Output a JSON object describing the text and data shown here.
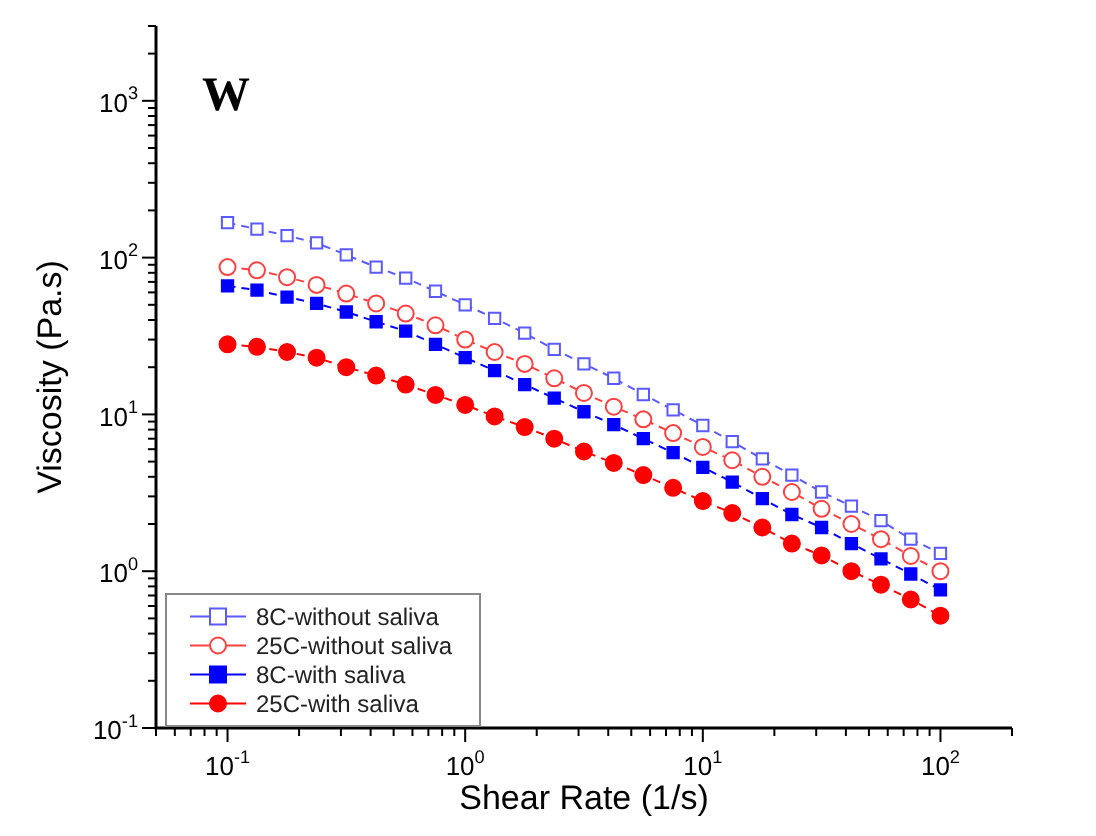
{
  "chart_data": {
    "type": "line",
    "xlabel": "Shear Rate (1/s)",
    "ylabel": "Viscosity (Pa.s)",
    "annotations": [
      "W"
    ],
    "log": "xy",
    "xlim": [
      0.05,
      200
    ],
    "ylim": [
      0.1,
      3000
    ],
    "line_style": "dashed",
    "legend": "bottom left",
    "grid": false,
    "xticks": [
      {
        "value": 0.05,
        "label": null
      },
      {
        "value": 0.06,
        "label": null
      },
      {
        "value": 0.07,
        "label": null
      },
      {
        "value": 0.08,
        "label": null
      },
      {
        "value": 0.09,
        "label": null
      },
      {
        "value": 0.1,
        "label": "10$^{-1}$"
      },
      {
        "value": 0.2,
        "label": null
      },
      {
        "value": 0.3,
        "label": null
      },
      {
        "value": 0.4,
        "label": null
      },
      {
        "value": 0.5,
        "label": null
      },
      {
        "value": 0.6,
        "label": null
      },
      {
        "value": 0.7,
        "label": null
      },
      {
        "value": 0.8,
        "label": null
      },
      {
        "value": 0.9,
        "label": null
      },
      {
        "value": 1,
        "label": "10$^{0}$"
      },
      {
        "value": 2,
        "label": null
      },
      {
        "value": 3,
        "label": null
      },
      {
        "value": 4,
        "label": null
      },
      {
        "value": 5,
        "label": null
      },
      {
        "value": 6,
        "label": null
      },
      {
        "value": 7,
        "label": null
      },
      {
        "value": 8,
        "label": null
      },
      {
        "value": 9,
        "label": null
      },
      {
        "value": 10,
        "label": "10$^{1}$"
      },
      {
        "value": 20,
        "label": null
      },
      {
        "value": 30,
        "label": null
      },
      {
        "value": 40,
        "label": null
      },
      {
        "value": 50,
        "label": null
      },
      {
        "value": 60,
        "label": null
      },
      {
        "value": 70,
        "label": null
      },
      {
        "value": 80,
        "label": null
      },
      {
        "value": 90,
        "label": null
      },
      {
        "value": 100,
        "label": "10$^{2}$"
      },
      {
        "value": 200,
        "label": null
      }
    ],
    "yticks": [
      {
        "value": 0.1,
        "label": "10$^{-1}$"
      },
      {
        "value": 0.2,
        "label": null
      },
      {
        "value": 0.3,
        "label": null
      },
      {
        "value": 0.4,
        "label": null
      },
      {
        "value": 0.5,
        "label": null
      },
      {
        "value": 0.6,
        "label": null
      },
      {
        "value": 0.7,
        "label": null
      },
      {
        "value": 0.8,
        "label": null
      },
      {
        "value": 0.9,
        "label": null
      },
      {
        "value": 1,
        "label": "10$^{0}$"
      },
      {
        "value": 2,
        "label": null
      },
      {
        "value": 3,
        "label": null
      },
      {
        "value": 4,
        "label": null
      },
      {
        "value": 5,
        "label": null
      },
      {
        "value": 6,
        "label": null
      },
      {
        "value": 7,
        "label": null
      },
      {
        "value": 8,
        "label": null
      },
      {
        "value": 9,
        "label": null
      },
      {
        "value": 10,
        "label": "10$^{1}$"
      },
      {
        "value": 20,
        "label": null
      },
      {
        "value": 30,
        "label": null
      },
      {
        "value": 40,
        "label": null
      },
      {
        "value": 50,
        "label": null
      },
      {
        "value": 60,
        "label": null
      },
      {
        "value": 70,
        "label": null
      },
      {
        "value": 80,
        "label": null
      },
      {
        "value": 90,
        "label": null
      },
      {
        "value": 100,
        "label": "10$^{2}$"
      },
      {
        "value": 200,
        "label": null
      },
      {
        "value": 300,
        "label": null
      },
      {
        "value": 400,
        "label": null
      },
      {
        "value": 500,
        "label": null
      },
      {
        "value": 600,
        "label": null
      },
      {
        "value": 700,
        "label": null
      },
      {
        "value": 800,
        "label": null
      },
      {
        "value": 900,
        "label": null
      },
      {
        "value": 1000,
        "label": "10$^{3}$"
      },
      {
        "value": 2000,
        "label": null
      },
      {
        "value": 3000,
        "label": null
      }
    ],
    "x": [
      0.1,
      0.133,
      0.178,
      0.237,
      0.316,
      0.422,
      0.562,
      0.75,
      1,
      1.33,
      1.78,
      2.37,
      3.16,
      4.22,
      5.62,
      7.5,
      10,
      13.3,
      17.8,
      23.7,
      31.6,
      42.2,
      56.2,
      75,
      100
    ],
    "series": [
      {
        "name": "8C-without saliva",
        "color": "#5a5aff",
        "marker": "square",
        "values": [
          167,
          152,
          138,
          124,
          104,
          87,
          74,
          61,
          50,
          41,
          33,
          26,
          21,
          17,
          13.4,
          10.7,
          8.5,
          6.7,
          5.2,
          4.1,
          3.2,
          2.6,
          2.1,
          1.6,
          1.3
        ]
      },
      {
        "name": "25C-without saliva",
        "color": "#ff4040",
        "marker": "circle",
        "values": [
          87,
          83,
          75,
          67,
          59,
          51,
          44,
          37,
          30,
          25,
          21,
          17,
          13.7,
          11.2,
          9.3,
          7.6,
          6.2,
          5.1,
          4,
          3.2,
          2.5,
          2,
          1.6,
          1.25,
          1
        ]
      },
      {
        "name": "8C-with saliva",
        "color": "#0000ff",
        "marker": "square",
        "values": [
          66,
          62,
          56,
          51,
          45,
          39,
          34,
          28,
          23,
          19,
          15.5,
          12.7,
          10.4,
          8.6,
          7,
          5.7,
          4.6,
          3.7,
          2.9,
          2.3,
          1.9,
          1.5,
          1.2,
          0.96,
          0.76
        ]
      },
      {
        "name": "25C-with saliva",
        "color": "#ff0000",
        "marker": "circle",
        "values": [
          28,
          27,
          25,
          23,
          20,
          17.7,
          15.5,
          13.3,
          11.5,
          9.7,
          8.3,
          7,
          5.8,
          4.9,
          4.1,
          3.4,
          2.8,
          2.35,
          1.9,
          1.5,
          1.26,
          1,
          0.82,
          0.66,
          0.52
        ]
      }
    ]
  }
}
